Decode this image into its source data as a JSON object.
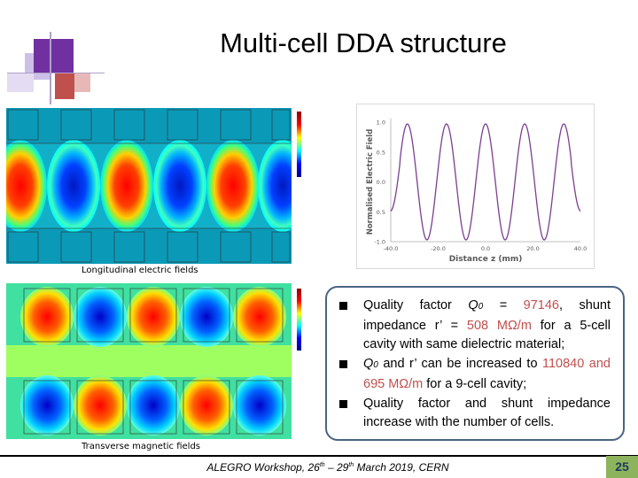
{
  "slide": {
    "title": "Multi-cell DDA structure",
    "colors": {
      "logo_purple": "#7030a0",
      "logo_red": "#c0504d",
      "logo_lavender": "#ccc0e8",
      "highlight": "#c0504d",
      "box_border": "#4a6481",
      "page_badge": "#8db35c"
    }
  },
  "panels": {
    "longitudinal_caption": "Longitudinal electric fields",
    "transverse_caption": "Transverse magnetic fields"
  },
  "chart_data": {
    "type": "line",
    "xlabel": "Distance z (mm)",
    "ylabel": "Normalised Electric Field",
    "xlim": [
      -40.0,
      40.0
    ],
    "ylim": [
      -1.0,
      1.0
    ],
    "x_ticks": [
      "-40.0",
      "-20.0",
      "0.0",
      "20.0",
      "40.0"
    ],
    "y_ticks": [
      "1.0",
      "0.5",
      "0.0",
      "0.5",
      "-1.0"
    ],
    "grid": false,
    "series": [
      {
        "color": "#7b3f8f",
        "description_points": "5 oscillation peaks",
        "x": [
          -40,
          -36,
          -32,
          -28,
          -24,
          -20,
          -16,
          -12,
          -8,
          -4,
          0,
          4,
          8,
          12,
          16,
          20,
          24,
          28,
          32,
          36,
          40
        ],
        "y": [
          0.55,
          0.9,
          0.1,
          -0.95,
          -0.1,
          0.95,
          0.1,
          -0.95,
          -0.1,
          0.95,
          0.1,
          -0.95,
          -0.1,
          0.95,
          0.1,
          -0.95,
          -0.1,
          0.9,
          0.1,
          -0.9,
          -0.55
        ]
      }
    ]
  },
  "bullets": [
    {
      "parts": [
        "Quality factor ",
        "Q",
        "0",
        " = ",
        "97146",
        ", shunt impedance r’ = ",
        "508 MΩ/m",
        " for a 5-cell cavity with same dielectric material;"
      ]
    },
    {
      "parts": [
        "Q",
        "0",
        " and r’ can be increased to ",
        "110840 and 695 MΩ/m",
        " for a 9-cell cavity;"
      ]
    },
    {
      "parts": [
        "Quality factor and shunt impedance increase with the number of cells."
      ]
    }
  ],
  "footer": {
    "text_a": "ALEGRO Workshop, 26",
    "sup_a": "th",
    "text_b": " – 29",
    "sup_b": "th",
    "text_c": " March 2019, CERN",
    "page_number": "25"
  }
}
